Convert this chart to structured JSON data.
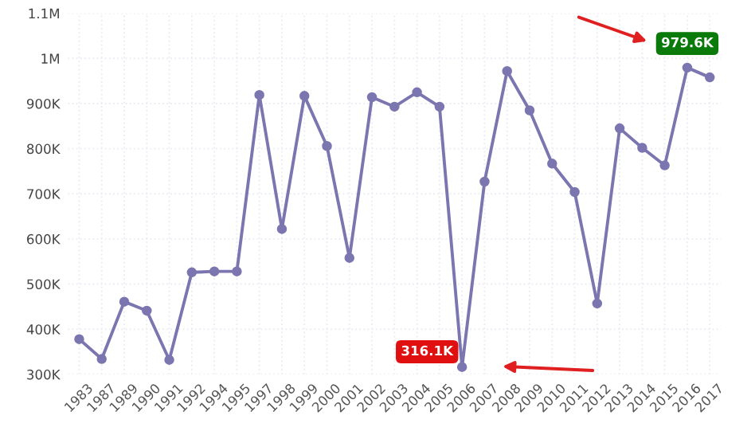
{
  "chart_data": {
    "type": "line",
    "categories": [
      "1983",
      "1987",
      "1989",
      "1990",
      "1991",
      "1992",
      "1994",
      "1995",
      "1997",
      "1998",
      "1999",
      "2000",
      "2001",
      "2002",
      "2003",
      "2004",
      "2005",
      "2006",
      "2007",
      "2008",
      "2009",
      "2010",
      "2011",
      "2012",
      "2013",
      "2014",
      "2015",
      "2016",
      "2017"
    ],
    "series": [
      {
        "color": "#7b76b0",
        "values": [
          378000,
          334000,
          461000,
          441000,
          332000,
          526000,
          528000,
          528000,
          919000,
          622000,
          917000,
          806000,
          558000,
          914000,
          893000,
          925000,
          893000,
          316100,
          727000,
          972000,
          885000,
          767000,
          704000,
          457000,
          845000,
          802000,
          763000,
          979600,
          958000
        ]
      }
    ],
    "ylim": [
      300000,
      1100000
    ],
    "yticks": [
      {
        "value": 300000,
        "label": "300K"
      },
      {
        "value": 400000,
        "label": "400K"
      },
      {
        "value": 500000,
        "label": "500K"
      },
      {
        "value": 600000,
        "label": "600K"
      },
      {
        "value": 700000,
        "label": "700K"
      },
      {
        "value": 800000,
        "label": "800K"
      },
      {
        "value": 900000,
        "label": "900K"
      },
      {
        "value": 1000000,
        "label": "1M"
      },
      {
        "value": 1100000,
        "label": "1.1M"
      }
    ],
    "annotations": [
      {
        "text": "979.6K",
        "x": "2016",
        "y": 979600
      },
      {
        "text": "316.1K",
        "x": "2006",
        "y": 316100
      }
    ],
    "grid": true,
    "marker": "circle",
    "line_style": "solid",
    "legend": false
  }
}
